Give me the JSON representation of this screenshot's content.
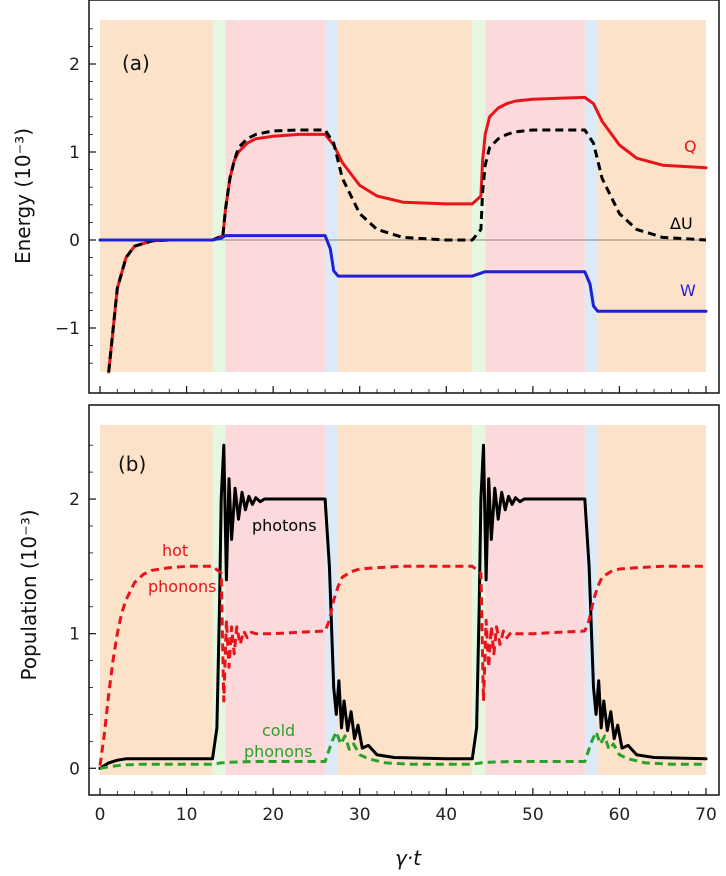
{
  "chart_data": [
    {
      "type": "line",
      "panel_label": "(a)",
      "ylabel": "Energy (10⁻³)",
      "xlim": [
        0,
        70
      ],
      "ylim": [
        -1.5,
        2.5
      ],
      "yticks": [
        -1,
        0,
        1,
        2
      ],
      "ytick_labels": [
        "−1",
        "0",
        "1",
        "2"
      ],
      "background_stages": [
        {
          "x0": 0,
          "x1": 13,
          "color": "#fbe2c9"
        },
        {
          "x0": 13,
          "x1": 14.5,
          "color": "#e6f7df"
        },
        {
          "x0": 14.5,
          "x1": 26,
          "color": "#fcd9da"
        },
        {
          "x0": 26,
          "x1": 27.5,
          "color": "#dce9f7"
        },
        {
          "x0": 27.5,
          "x1": 43,
          "color": "#fbe2c9"
        },
        {
          "x0": 43,
          "x1": 44.5,
          "color": "#e6f7df"
        },
        {
          "x0": 44.5,
          "x1": 56,
          "color": "#fcd9da"
        },
        {
          "x0": 56,
          "x1": 57.5,
          "color": "#dce9f7"
        },
        {
          "x0": 57.5,
          "x1": 70,
          "color": "#fbe2c9"
        }
      ],
      "series": [
        {
          "name": "Q",
          "color": "#e8141c",
          "style": "solid",
          "x": [
            1,
            2,
            3,
            4,
            6,
            8,
            10,
            13,
            14.2,
            14.5,
            15,
            15.5,
            16,
            17,
            18,
            20,
            23,
            26,
            27,
            28,
            30,
            32,
            35,
            40,
            43,
            44,
            44.2,
            44.5,
            45,
            46,
            47,
            48,
            50,
            53,
            56,
            57,
            58,
            60,
            62,
            65,
            70
          ],
          "y": [
            -1.5,
            -0.55,
            -0.2,
            -0.07,
            -0.01,
            0,
            0,
            0,
            0.05,
            0.35,
            0.7,
            0.9,
            1.0,
            1.1,
            1.15,
            1.18,
            1.2,
            1.2,
            1.08,
            0.88,
            0.62,
            0.5,
            0.43,
            0.41,
            0.41,
            0.5,
            0.9,
            1.2,
            1.4,
            1.5,
            1.55,
            1.58,
            1.6,
            1.61,
            1.62,
            1.55,
            1.35,
            1.08,
            0.93,
            0.85,
            0.82
          ]
        },
        {
          "name": "ΔU",
          "color": "#000000",
          "style": "dashed",
          "x": [
            1,
            2,
            3,
            4,
            6,
            8,
            10,
            13,
            14.2,
            14.5,
            15,
            15.5,
            16,
            17,
            18,
            20,
            23,
            26,
            27,
            28,
            30,
            32,
            35,
            40,
            43,
            44,
            44.2,
            44.5,
            45,
            46,
            47,
            48,
            50,
            53,
            56,
            57,
            58,
            60,
            62,
            65,
            70
          ],
          "y": [
            -1.5,
            -0.55,
            -0.2,
            -0.07,
            -0.01,
            0,
            0,
            0,
            0.05,
            0.35,
            0.7,
            0.9,
            1.05,
            1.15,
            1.2,
            1.24,
            1.25,
            1.25,
            1.1,
            0.7,
            0.3,
            0.12,
            0.03,
            0,
            0,
            0.12,
            0.55,
            0.85,
            1.05,
            1.15,
            1.2,
            1.23,
            1.25,
            1.25,
            1.25,
            1.1,
            0.7,
            0.3,
            0.12,
            0.03,
            0
          ]
        },
        {
          "name": "W",
          "color": "#1f1fd6",
          "style": "solid",
          "x": [
            0,
            13,
            14,
            14.5,
            26,
            26.6,
            27,
            27.5,
            43,
            44.2,
            44.5,
            56,
            56.6,
            57,
            57.5,
            70
          ],
          "y": [
            0,
            0,
            0.02,
            0.05,
            0.05,
            -0.1,
            -0.35,
            -0.41,
            -0.41,
            -0.37,
            -0.36,
            -0.36,
            -0.5,
            -0.75,
            -0.81,
            -0.81
          ]
        }
      ],
      "annotations": [
        {
          "text": "Q",
          "color": "#e8141c"
        },
        {
          "text": "ΔU",
          "color": "#000000"
        },
        {
          "text": "W",
          "color": "#1f1fd6"
        }
      ]
    },
    {
      "type": "line",
      "panel_label": "(b)",
      "ylabel": "Population (10⁻³)",
      "xlabel": "γ·t",
      "xlim": [
        0,
        70
      ],
      "ylim": [
        -0.05,
        2.55
      ],
      "xticks": [
        0,
        10,
        20,
        30,
        40,
        50,
        60,
        70
      ],
      "xtick_labels": [
        "0",
        "10",
        "20",
        "30",
        "40",
        "50",
        "60",
        "70"
      ],
      "yticks": [
        0,
        1,
        2
      ],
      "ytick_labels": [
        "0",
        "1",
        "2"
      ],
      "series": [
        {
          "name": "photons",
          "color": "#000000",
          "style": "solid",
          "x": [
            0,
            0.5,
            1,
            2,
            3,
            5,
            8,
            10,
            13,
            13.5,
            13.8,
            14,
            14.3,
            14.6,
            14.9,
            15.2,
            15.6,
            16,
            16.4,
            16.8,
            17.2,
            17.6,
            18,
            18.5,
            19,
            20,
            23,
            26,
            26.5,
            27,
            27.3,
            27.6,
            27.9,
            28.2,
            28.6,
            29,
            29.4,
            29.8,
            30.3,
            31,
            32,
            34,
            40,
            43,
            43.5,
            43.8,
            44,
            44.3,
            44.6,
            44.9,
            45.2,
            45.6,
            46,
            46.4,
            46.8,
            47.2,
            47.6,
            48,
            48.5,
            49,
            50,
            53,
            56,
            56.5,
            57,
            57.3,
            57.6,
            57.9,
            58.2,
            58.6,
            59,
            59.4,
            59.8,
            60.3,
            61,
            62,
            64,
            70
          ],
          "y": [
            0,
            0.02,
            0.04,
            0.06,
            0.07,
            0.07,
            0.07,
            0.07,
            0.07,
            0.3,
            1.2,
            2.0,
            2.4,
            1.4,
            2.15,
            1.7,
            2.08,
            1.85,
            2.05,
            1.92,
            2.02,
            1.96,
            2.01,
            1.98,
            2.0,
            2.0,
            2.0,
            2.0,
            1.5,
            0.6,
            0.4,
            0.65,
            0.3,
            0.5,
            0.28,
            0.42,
            0.22,
            0.32,
            0.15,
            0.17,
            0.1,
            0.08,
            0.07,
            0.07,
            0.3,
            1.2,
            2.0,
            2.4,
            1.4,
            2.15,
            1.7,
            2.08,
            1.85,
            2.05,
            1.92,
            2.02,
            1.96,
            2.01,
            1.98,
            2.0,
            2.0,
            2.0,
            2.0,
            1.5,
            0.6,
            0.4,
            0.65,
            0.3,
            0.5,
            0.28,
            0.42,
            0.22,
            0.32,
            0.15,
            0.17,
            0.1,
            0.08,
            0.07
          ]
        },
        {
          "name": "hot phonons",
          "color": "#e8141c",
          "style": "dashed",
          "x": [
            0,
            0.5,
            1,
            1.5,
            2,
            2.5,
            3,
            4,
            5,
            6,
            8,
            10,
            13,
            14,
            14.3,
            14.6,
            14.9,
            15.2,
            15.5,
            15.8,
            16.2,
            16.6,
            17,
            17.5,
            18,
            20,
            23,
            26,
            26.5,
            27,
            27.5,
            28,
            29,
            30,
            32,
            35,
            40,
            43,
            44,
            44.3,
            44.6,
            44.9,
            45.2,
            45.5,
            45.8,
            46.2,
            46.6,
            47,
            47.5,
            48,
            50,
            53,
            56,
            56.5,
            57,
            57.5,
            58,
            59,
            60,
            62,
            65,
            70
          ],
          "y": [
            0.02,
            0.25,
            0.55,
            0.8,
            1.0,
            1.15,
            1.25,
            1.38,
            1.44,
            1.47,
            1.49,
            1.5,
            1.5,
            1.45,
            0.5,
            1.1,
            0.75,
            1.05,
            0.85,
            1.05,
            0.92,
            1.02,
            0.97,
            1.01,
            1.0,
            1.0,
            1.01,
            1.02,
            1.1,
            1.25,
            1.35,
            1.42,
            1.46,
            1.48,
            1.49,
            1.5,
            1.5,
            1.5,
            1.45,
            0.5,
            1.1,
            0.75,
            1.05,
            0.85,
            1.05,
            0.92,
            1.02,
            0.97,
            1.01,
            1.0,
            1.0,
            1.01,
            1.02,
            1.1,
            1.25,
            1.35,
            1.42,
            1.46,
            1.48,
            1.49,
            1.5,
            1.5
          ]
        },
        {
          "name": "cold phonons",
          "color": "#2ca02c",
          "style": "dashed",
          "x": [
            0,
            1,
            2,
            3,
            5,
            10,
            13,
            14,
            15,
            18,
            22,
            26,
            26.8,
            27.3,
            27.8,
            28.3,
            28.8,
            29.3,
            30,
            31,
            33,
            36,
            40,
            43,
            44,
            45,
            48,
            52,
            56,
            56.8,
            57.3,
            57.8,
            58.3,
            58.8,
            59.3,
            60,
            61,
            63,
            66,
            70
          ],
          "y": [
            0,
            0.01,
            0.02,
            0.025,
            0.03,
            0.03,
            0.03,
            0.04,
            0.045,
            0.05,
            0.05,
            0.05,
            0.2,
            0.27,
            0.18,
            0.24,
            0.14,
            0.18,
            0.1,
            0.07,
            0.04,
            0.03,
            0.03,
            0.03,
            0.04,
            0.045,
            0.05,
            0.05,
            0.05,
            0.2,
            0.27,
            0.18,
            0.24,
            0.14,
            0.18,
            0.1,
            0.07,
            0.04,
            0.03,
            0.03
          ]
        }
      ],
      "annotations": [
        {
          "text": "photons",
          "color": "#000000"
        },
        {
          "text": "hot",
          "color": "#e8141c"
        },
        {
          "text": "phonons",
          "color": "#e8141c"
        },
        {
          "text": "cold",
          "color": "#2ca02c"
        },
        {
          "text": "phonons",
          "color": "#2ca02c"
        }
      ]
    }
  ]
}
